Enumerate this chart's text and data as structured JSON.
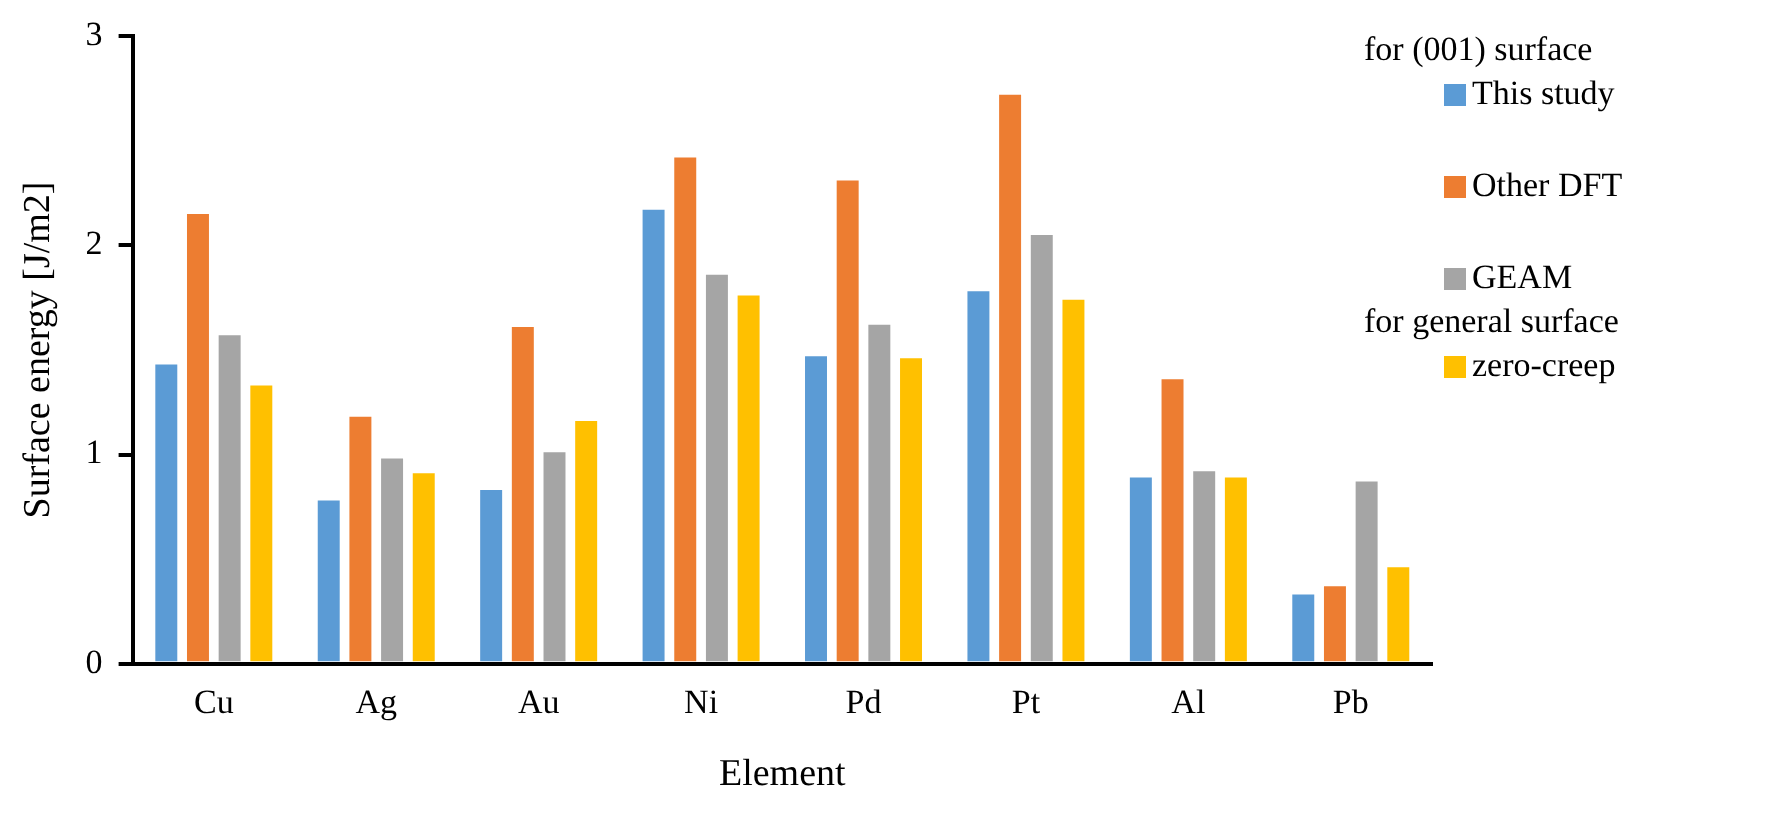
{
  "chart_data": {
    "type": "bar",
    "xlabel": "Element",
    "ylabel": "Surface energy [J/m2]",
    "legend_title": "for (001) surface",
    "annotations": [
      "for general surface"
    ],
    "categories": [
      "Cu",
      "Ag",
      "Au",
      "Ni",
      "Pd",
      "Pt",
      "Al",
      "Pb"
    ],
    "series": [
      {
        "name": "This study",
        "color": "#5b9bd5",
        "values": [
          1.44,
          0.79,
          0.84,
          2.18,
          1.48,
          1.79,
          0.9,
          0.34
        ]
      },
      {
        "name": "Other DFT",
        "color": "#ed7d31",
        "values": [
          2.16,
          1.19,
          1.62,
          2.43,
          2.32,
          2.73,
          1.37,
          0.38
        ]
      },
      {
        "name": "GEAM",
        "color": "#a5a5a5",
        "values": [
          1.58,
          0.99,
          1.02,
          1.87,
          1.63,
          2.06,
          0.93,
          0.88
        ]
      },
      {
        "name": "zero-creep",
        "color": "#ffc000",
        "values": [
          1.34,
          0.92,
          1.17,
          1.77,
          1.47,
          1.75,
          0.9,
          0.47
        ]
      }
    ],
    "ylim": [
      0,
      3
    ],
    "yticks": [
      0,
      1,
      2,
      3
    ],
    "grid": false,
    "legend": "right"
  }
}
